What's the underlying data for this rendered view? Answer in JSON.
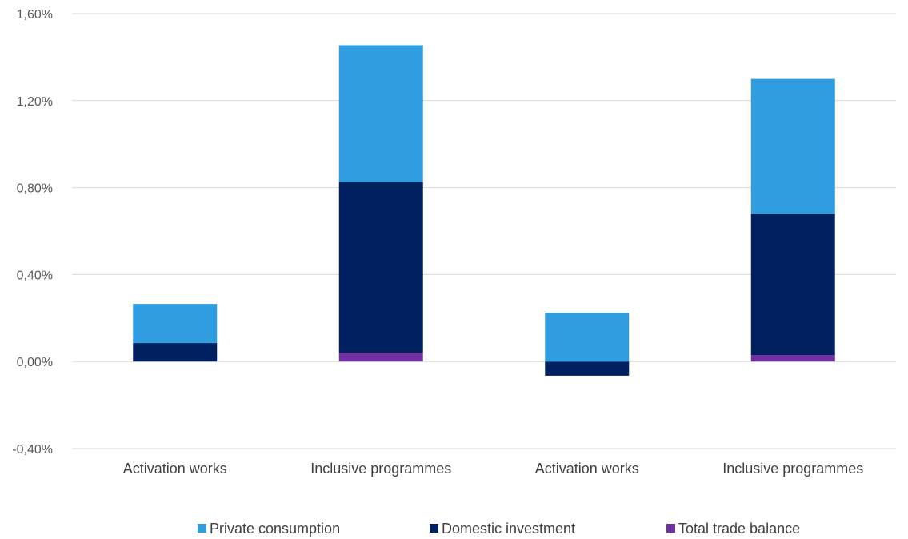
{
  "chart_data": {
    "type": "bar",
    "stacked": true,
    "categories": [
      "Activation works",
      "Inclusive programmes",
      "Activation works",
      "Inclusive programmes"
    ],
    "series": [
      {
        "name": "Total trade balance",
        "color": "#7030a0",
        "values": [
          0.0,
          0.04,
          0.0,
          0.03
        ]
      },
      {
        "name": "Domestic investment",
        "color": "#002060",
        "values": [
          0.085,
          0.785,
          -0.065,
          0.65
        ]
      },
      {
        "name": "Private consumption",
        "color": "#2f9ddf",
        "values": [
          0.18,
          0.63,
          0.225,
          0.62
        ]
      }
    ],
    "yticks": [
      "1,60%",
      "1,20%",
      "0,80%",
      "0,40%",
      "0,00%",
      "-0,40%"
    ],
    "ylim": [
      -0.4,
      1.6
    ],
    "grid": true,
    "legend_position": "bottom",
    "title": "",
    "xlabel": "",
    "ylabel": ""
  }
}
